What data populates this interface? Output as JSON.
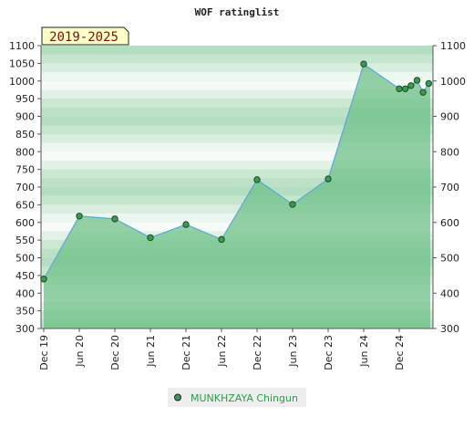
{
  "chart_data": {
    "type": "area",
    "title": "WOF ratinglist",
    "badge": "2019-2025",
    "ylim": [
      300,
      1100
    ],
    "y_ticks": [
      300,
      350,
      400,
      450,
      500,
      550,
      600,
      650,
      700,
      750,
      800,
      850,
      900,
      950,
      1000,
      1050,
      1100
    ],
    "y_ticks_right": [
      300,
      400,
      500,
      600,
      700,
      800,
      900,
      1000,
      1100
    ],
    "x_tick_labels": [
      "Dec 19",
      "Jun 20",
      "Dec 20",
      "Jun 21",
      "Dec 21",
      "Jun 22",
      "Dec 22",
      "Jun 23",
      "Dec 23",
      "Jun 24",
      "Dec 24"
    ],
    "grid": true,
    "legend_position": "bottom",
    "series": [
      {
        "name": "MUNKHZAYA Chingun",
        "color": "#5aa9d6",
        "fill_color": "#6cbf86",
        "marker_color": "#3a9a52",
        "x": [
          "Dec 19",
          "Jun 20",
          "Dec 20",
          "Jun 21",
          "Dec 21",
          "Jun 22",
          "Dec 22",
          "Jun 23",
          "Dec 23",
          "Jun 24",
          "Dec 24",
          "Jan 25",
          "Feb 25",
          "Mar 25",
          "Apr 25",
          "May 25"
        ],
        "x_index": [
          0,
          1,
          2,
          3,
          4,
          5,
          6,
          7,
          8,
          9,
          10,
          10.17,
          10.33,
          10.5,
          10.67,
          10.83
        ],
        "values": [
          440,
          618,
          610,
          557,
          594,
          552,
          721,
          651,
          723,
          1048,
          978,
          978,
          987,
          1002,
          968,
          993
        ]
      }
    ]
  }
}
